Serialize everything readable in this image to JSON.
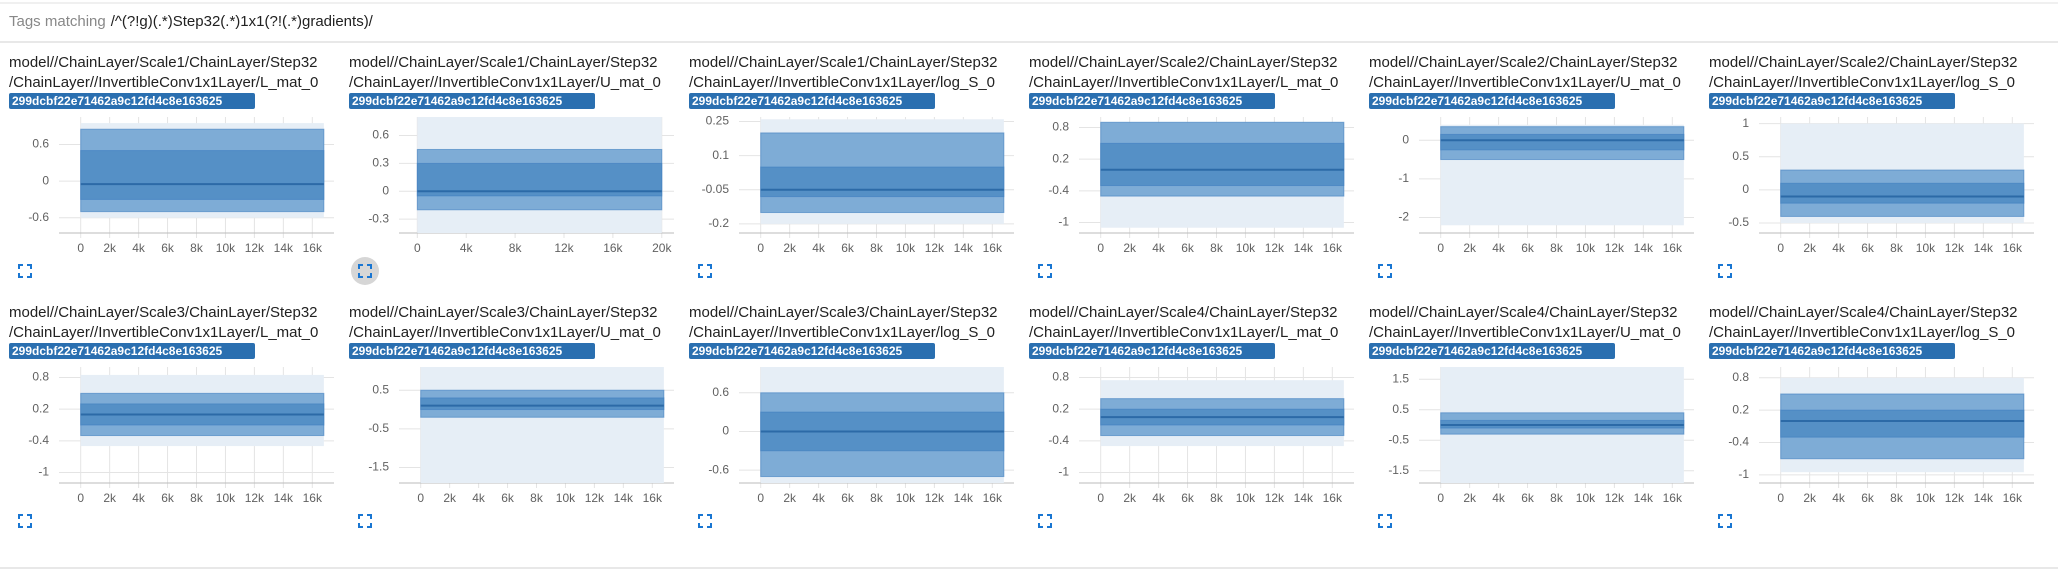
{
  "header": {
    "label": "Tags matching",
    "pattern": "/^(?!g)(.*)Step32(.*)1x1(?!(.*)gradients)/"
  },
  "band_colors": [
    "#e6eef6",
    "#7eacd6",
    "#5590c6"
  ],
  "median_color": "#2c6aa7",
  "panels": [
    {
      "title": [
        "model//ChainLayer/Scale1/ChainLayer/Step32",
        "/ChainLayer//InvertibleConv1x1Layer/L_mat_0"
      ],
      "run": "299dcbf22e71462a9c12fd4c8e163625",
      "chart": {
        "x": [
          0,
          16800
        ],
        "xlim": [
          -1500,
          17500
        ],
        "xticks": [
          0,
          {
            "value": 2000,
            "label": "2k"
          },
          {
            "value": 4000,
            "label": "4k"
          },
          {
            "value": 6000,
            "label": "6k"
          },
          {
            "value": 8000,
            "label": "8k"
          },
          {
            "value": 10000,
            "label": "10k"
          },
          {
            "value": 12000,
            "label": "12k"
          },
          {
            "value": 14000,
            "label": "14k"
          },
          {
            "value": 16000,
            "label": "16k"
          }
        ],
        "ylim": [
          -0.85,
          1.05
        ],
        "yticks": [
          -0.6,
          0,
          0.6
        ],
        "bands": [
          [
            -0.6,
            0.95
          ],
          [
            -0.5,
            0.85
          ],
          [
            -0.3,
            0.5
          ]
        ],
        "median": -0.05
      }
    },
    {
      "title": [
        "model//ChainLayer/Scale1/ChainLayer/Step32",
        "/ChainLayer//InvertibleConv1x1Layer/U_mat_0"
      ],
      "run": "299dcbf22e71462a9c12fd4c8e163625",
      "chart": {
        "x": [
          0,
          20000
        ],
        "xlim": [
          -1500,
          21000
        ],
        "xticks": [
          0,
          {
            "value": 4000,
            "label": "4k"
          },
          {
            "value": 8000,
            "label": "8k"
          },
          {
            "value": 12000,
            "label": "12k"
          },
          {
            "value": 16000,
            "label": "16k"
          },
          {
            "value": 20000,
            "label": "20k"
          }
        ],
        "ylim": [
          -0.45,
          0.8
        ],
        "yticks": [
          -0.3,
          0,
          0.3,
          0.6
        ],
        "bands": [
          [
            -0.45,
            0.8
          ],
          [
            -0.2,
            0.45
          ],
          [
            -0.05,
            0.3
          ]
        ],
        "median": 0
      }
    },
    {
      "title": [
        "model//ChainLayer/Scale1/ChainLayer/Step32",
        "/ChainLayer//InvertibleConv1x1Layer/log_S_0"
      ],
      "run": "299dcbf22e71462a9c12fd4c8e163625",
      "chart": {
        "x": [
          0,
          16800
        ],
        "xlim": [
          -1500,
          17500
        ],
        "xticks": [
          0,
          {
            "value": 2000,
            "label": "2k"
          },
          {
            "value": 4000,
            "label": "4k"
          },
          {
            "value": 6000,
            "label": "6k"
          },
          {
            "value": 8000,
            "label": "8k"
          },
          {
            "value": 10000,
            "label": "10k"
          },
          {
            "value": 12000,
            "label": "12k"
          },
          {
            "value": 14000,
            "label": "14k"
          },
          {
            "value": 16000,
            "label": "16k"
          }
        ],
        "ylim": [
          -0.24,
          0.27
        ],
        "yticks": [
          -0.2,
          -0.05,
          0.1,
          0.25
        ],
        "bands": [
          [
            -0.2,
            0.26
          ],
          [
            -0.15,
            0.2
          ],
          [
            -0.08,
            0.05
          ]
        ],
        "median": -0.05
      }
    },
    {
      "title": [
        "model//ChainLayer/Scale2/ChainLayer/Step32",
        "/ChainLayer//InvertibleConv1x1Layer/L_mat_0"
      ],
      "run": "299dcbf22e71462a9c12fd4c8e163625",
      "chart": {
        "x": [
          0,
          16800
        ],
        "xlim": [
          -1500,
          17500
        ],
        "xticks": [
          0,
          {
            "value": 2000,
            "label": "2k"
          },
          {
            "value": 4000,
            "label": "4k"
          },
          {
            "value": 6000,
            "label": "6k"
          },
          {
            "value": 8000,
            "label": "8k"
          },
          {
            "value": 10000,
            "label": "10k"
          },
          {
            "value": 12000,
            "label": "12k"
          },
          {
            "value": 14000,
            "label": "14k"
          },
          {
            "value": 16000,
            "label": "16k"
          }
        ],
        "ylim": [
          -1.2,
          1.0
        ],
        "yticks": [
          -1,
          -0.4,
          0.2,
          0.8
        ],
        "bands": [
          [
            -1.1,
            0.9
          ],
          [
            -0.5,
            0.9
          ],
          [
            -0.3,
            0.5
          ]
        ],
        "median": 0
      }
    },
    {
      "title": [
        "model//ChainLayer/Scale2/ChainLayer/Step32",
        "/ChainLayer//InvertibleConv1x1Layer/U_mat_0"
      ],
      "run": "299dcbf22e71462a9c12fd4c8e163625",
      "chart": {
        "x": [
          0,
          16800
        ],
        "xlim": [
          -1500,
          17500
        ],
        "xticks": [
          0,
          {
            "value": 2000,
            "label": "2k"
          },
          {
            "value": 4000,
            "label": "4k"
          },
          {
            "value": 6000,
            "label": "6k"
          },
          {
            "value": 8000,
            "label": "8k"
          },
          {
            "value": 10000,
            "label": "10k"
          },
          {
            "value": 12000,
            "label": "12k"
          },
          {
            "value": 14000,
            "label": "14k"
          },
          {
            "value": 16000,
            "label": "16k"
          }
        ],
        "ylim": [
          -2.4,
          0.6
        ],
        "yticks": [
          -2,
          -1,
          0
        ],
        "bands": [
          [
            -2.2,
            0.4
          ],
          [
            -0.5,
            0.35
          ],
          [
            -0.25,
            0.15
          ]
        ],
        "median": 0
      }
    },
    {
      "title": [
        "model//ChainLayer/Scale2/ChainLayer/Step32",
        "/ChainLayer//InvertibleConv1x1Layer/log_S_0"
      ],
      "run": "299dcbf22e71462a9c12fd4c8e163625",
      "chart": {
        "x": [
          0,
          16800
        ],
        "xlim": [
          -1500,
          17500
        ],
        "xticks": [
          0,
          {
            "value": 2000,
            "label": "2k"
          },
          {
            "value": 4000,
            "label": "4k"
          },
          {
            "value": 6000,
            "label": "6k"
          },
          {
            "value": 8000,
            "label": "8k"
          },
          {
            "value": 10000,
            "label": "10k"
          },
          {
            "value": 12000,
            "label": "12k"
          },
          {
            "value": 14000,
            "label": "14k"
          },
          {
            "value": 16000,
            "label": "16k"
          }
        ],
        "ylim": [
          -0.65,
          1.1
        ],
        "yticks": [
          -0.5,
          0,
          0.5,
          1
        ],
        "bands": [
          [
            -0.5,
            1.0
          ],
          [
            -0.4,
            0.3
          ],
          [
            -0.2,
            0.1
          ]
        ],
        "median": -0.1
      }
    },
    {
      "title": [
        "model//ChainLayer/Scale3/ChainLayer/Step32",
        "/ChainLayer//InvertibleConv1x1Layer/L_mat_0"
      ],
      "run": "299dcbf22e71462a9c12fd4c8e163625",
      "chart": {
        "x": [
          0,
          16800
        ],
        "xlim": [
          -1500,
          17500
        ],
        "xticks": [
          0,
          {
            "value": 2000,
            "label": "2k"
          },
          {
            "value": 4000,
            "label": "4k"
          },
          {
            "value": 6000,
            "label": "6k"
          },
          {
            "value": 8000,
            "label": "8k"
          },
          {
            "value": 10000,
            "label": "10k"
          },
          {
            "value": 12000,
            "label": "12k"
          },
          {
            "value": 14000,
            "label": "14k"
          },
          {
            "value": 16000,
            "label": "16k"
          }
        ],
        "ylim": [
          -1.2,
          1.0
        ],
        "yticks": [
          -1,
          -0.4,
          0.2,
          0.8
        ],
        "bands": [
          [
            -0.5,
            0.85
          ],
          [
            -0.3,
            0.5
          ],
          [
            -0.1,
            0.3
          ]
        ],
        "median": 0.1
      }
    },
    {
      "title": [
        "model//ChainLayer/Scale3/ChainLayer/Step32",
        "/ChainLayer//InvertibleConv1x1Layer/U_mat_0"
      ],
      "run": "299dcbf22e71462a9c12fd4c8e163625",
      "chart": {
        "x": [
          0,
          16800
        ],
        "xlim": [
          -1500,
          17500
        ],
        "xticks": [
          0,
          {
            "value": 2000,
            "label": "2k"
          },
          {
            "value": 4000,
            "label": "4k"
          },
          {
            "value": 6000,
            "label": "6k"
          },
          {
            "value": 8000,
            "label": "8k"
          },
          {
            "value": 10000,
            "label": "10k"
          },
          {
            "value": 12000,
            "label": "12k"
          },
          {
            "value": 14000,
            "label": "14k"
          },
          {
            "value": 16000,
            "label": "16k"
          }
        ],
        "ylim": [
          -1.9,
          1.1
        ],
        "yticks": [
          -1.5,
          -0.5,
          0.5
        ],
        "bands": [
          [
            -1.9,
            1.1
          ],
          [
            -0.2,
            0.5
          ],
          [
            0,
            0.3
          ]
        ],
        "median": 0.1
      }
    },
    {
      "title": [
        "model//ChainLayer/Scale3/ChainLayer/Step32",
        "/ChainLayer//InvertibleConv1x1Layer/log_S_0"
      ],
      "run": "299dcbf22e71462a9c12fd4c8e163625",
      "chart": {
        "x": [
          0,
          16800
        ],
        "xlim": [
          -1500,
          17500
        ],
        "xticks": [
          0,
          {
            "value": 2000,
            "label": "2k"
          },
          {
            "value": 4000,
            "label": "4k"
          },
          {
            "value": 6000,
            "label": "6k"
          },
          {
            "value": 8000,
            "label": "8k"
          },
          {
            "value": 10000,
            "label": "10k"
          },
          {
            "value": 12000,
            "label": "12k"
          },
          {
            "value": 14000,
            "label": "14k"
          },
          {
            "value": 16000,
            "label": "16k"
          }
        ],
        "ylim": [
          -0.8,
          1.0
        ],
        "yticks": [
          -0.6,
          0,
          0.6
        ],
        "bands": [
          [
            -0.8,
            1.0
          ],
          [
            -0.7,
            0.6
          ],
          [
            -0.3,
            0.3
          ]
        ],
        "median": 0
      }
    },
    {
      "title": [
        "model//ChainLayer/Scale4/ChainLayer/Step32",
        "/ChainLayer//InvertibleConv1x1Layer/L_mat_0"
      ],
      "run": "299dcbf22e71462a9c12fd4c8e163625",
      "chart": {
        "x": [
          0,
          16800
        ],
        "xlim": [
          -1500,
          17500
        ],
        "xticks": [
          0,
          {
            "value": 2000,
            "label": "2k"
          },
          {
            "value": 4000,
            "label": "4k"
          },
          {
            "value": 6000,
            "label": "6k"
          },
          {
            "value": 8000,
            "label": "8k"
          },
          {
            "value": 10000,
            "label": "10k"
          },
          {
            "value": 12000,
            "label": "12k"
          },
          {
            "value": 14000,
            "label": "14k"
          },
          {
            "value": 16000,
            "label": "16k"
          }
        ],
        "ylim": [
          -1.2,
          1.0
        ],
        "yticks": [
          -1,
          -0.4,
          0.2,
          0.8
        ],
        "bands": [
          [
            -0.5,
            0.75
          ],
          [
            -0.3,
            0.4
          ],
          [
            -0.1,
            0.2
          ]
        ],
        "median": 0.05
      }
    },
    {
      "title": [
        "model//ChainLayer/Scale4/ChainLayer/Step32",
        "/ChainLayer//InvertibleConv1x1Layer/U_mat_0"
      ],
      "run": "299dcbf22e71462a9c12fd4c8e163625",
      "chart": {
        "x": [
          0,
          16800
        ],
        "xlim": [
          -1500,
          17500
        ],
        "xticks": [
          0,
          {
            "value": 2000,
            "label": "2k"
          },
          {
            "value": 4000,
            "label": "4k"
          },
          {
            "value": 6000,
            "label": "6k"
          },
          {
            "value": 8000,
            "label": "8k"
          },
          {
            "value": 10000,
            "label": "10k"
          },
          {
            "value": 12000,
            "label": "12k"
          },
          {
            "value": 14000,
            "label": "14k"
          },
          {
            "value": 16000,
            "label": "16k"
          }
        ],
        "ylim": [
          -1.9,
          1.9
        ],
        "yticks": [
          -1.5,
          -0.5,
          0.5,
          1.5
        ],
        "bands": [
          [
            -1.9,
            1.9
          ],
          [
            -0.3,
            0.4
          ],
          [
            -0.1,
            0.15
          ]
        ],
        "median": 0
      }
    },
    {
      "title": [
        "model//ChainLayer/Scale4/ChainLayer/Step32",
        "/ChainLayer//InvertibleConv1x1Layer/log_S_0"
      ],
      "run": "299dcbf22e71462a9c12fd4c8e163625",
      "chart": {
        "x": [
          0,
          16800
        ],
        "xlim": [
          -1500,
          17500
        ],
        "xticks": [
          0,
          {
            "value": 2000,
            "label": "2k"
          },
          {
            "value": 4000,
            "label": "4k"
          },
          {
            "value": 6000,
            "label": "6k"
          },
          {
            "value": 8000,
            "label": "8k"
          },
          {
            "value": 10000,
            "label": "10k"
          },
          {
            "value": 12000,
            "label": "12k"
          },
          {
            "value": 14000,
            "label": "14k"
          },
          {
            "value": 16000,
            "label": "16k"
          }
        ],
        "ylim": [
          -1.15,
          1.0
        ],
        "yticks": [
          -1,
          -0.4,
          0.2,
          0.8
        ],
        "bands": [
          [
            -0.95,
            0.8
          ],
          [
            -0.7,
            0.5
          ],
          [
            -0.3,
            0.2
          ]
        ],
        "median": 0
      }
    }
  ]
}
